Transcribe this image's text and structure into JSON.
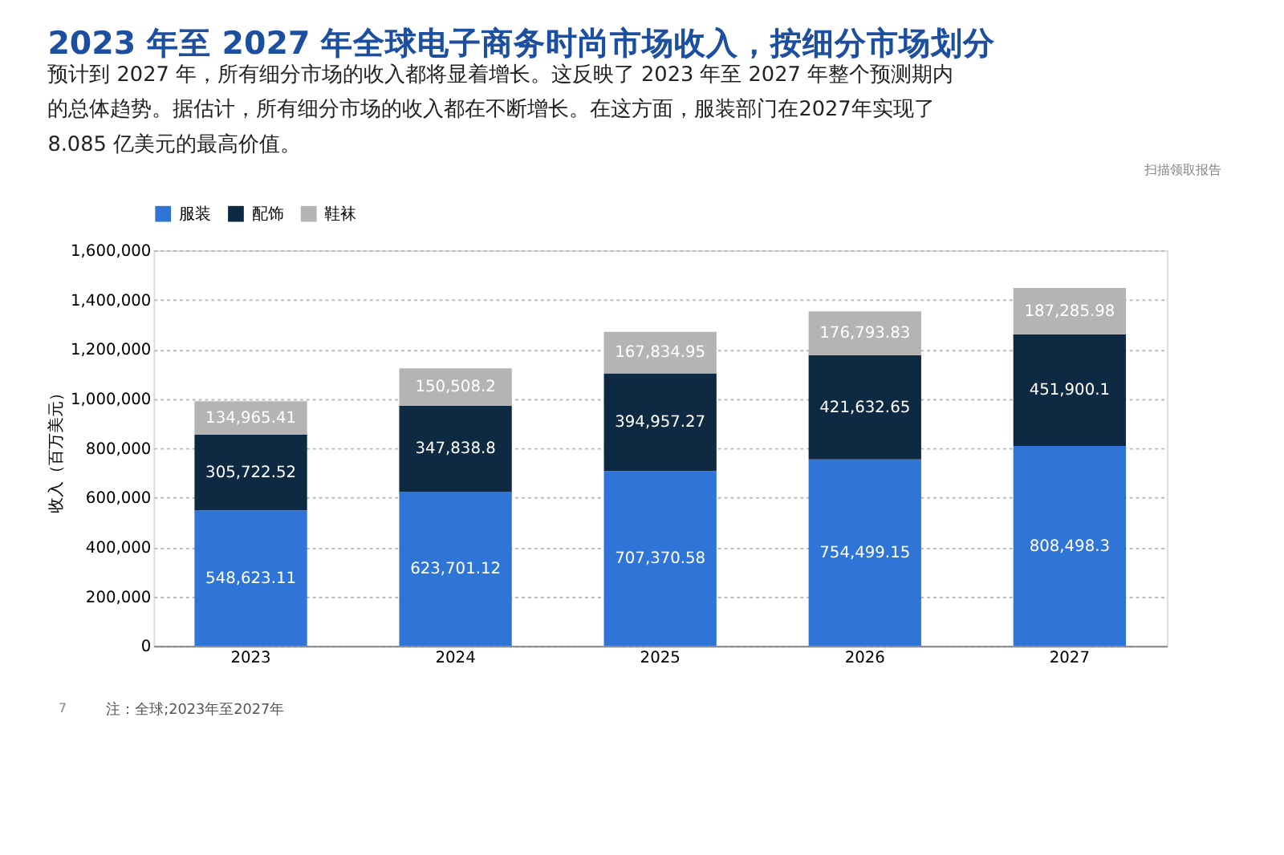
{
  "chart_data": {
    "type": "bar",
    "stacked": true,
    "title": "2023 年至 2027 年全球电子商务时尚市场收入，按细分市场划分",
    "subtitle": "预计到 2027 年，所有细分市场的收入都将显着增长。这反映了 2023 年至 2027 年整个预测期内的总体趋势。据估计，所有细分市场的收入都在不断增长。在这方面，服装部门在2027年实现了8.085 亿美元的最高价值。",
    "ylabel": "收入（百万美元）",
    "categories": [
      "2023",
      "2024",
      "2025",
      "2026",
      "2027"
    ],
    "series": [
      {
        "name": "服装",
        "color": "#2f75d8",
        "values": [
          548623.11,
          623701.12,
          707370.58,
          754499.15,
          808498.3
        ],
        "value_labels": [
          "548,623.11",
          "623,701.12",
          "707,370.58",
          "754,499.15",
          "808,498.3"
        ]
      },
      {
        "name": "配饰",
        "color": "#0e2a42",
        "values": [
          305722.52,
          347838.8,
          394957.27,
          421632.65,
          451900.1
        ],
        "value_labels": [
          "305,722.52",
          "347,838.8",
          "394,957.27",
          "421,632.65",
          "451,900.1"
        ]
      },
      {
        "name": "鞋袜",
        "color": "#b4b4b4",
        "values": [
          134965.41,
          150508.2,
          167834.95,
          176793.83,
          187285.98
        ],
        "value_labels": [
          "134,965.41",
          "150,508.2",
          "167,834.95",
          "176,793.83",
          "187,285.98"
        ]
      }
    ],
    "ylim": [
      0,
      1600000
    ],
    "yticks": [
      0,
      {
        "value": 200000,
        "label": "200,000"
      },
      {
        "value": 400000,
        "label": "400,000"
      },
      {
        "value": 600000,
        "label": "600,000"
      },
      {
        "value": 800000,
        "label": "800,000"
      },
      {
        "value": 1000000,
        "label": "1,000,000"
      },
      {
        "value": 1200000,
        "label": "1,200,000"
      },
      {
        "value": 1400000,
        "label": "1,400,000"
      },
      {
        "value": 1600000,
        "label": "1,600,000"
      }
    ],
    "grid": "y",
    "legend": "top",
    "annotations": [
      "注：全球;2023年至2027年",
      "扫描领取报告",
      "7"
    ]
  }
}
